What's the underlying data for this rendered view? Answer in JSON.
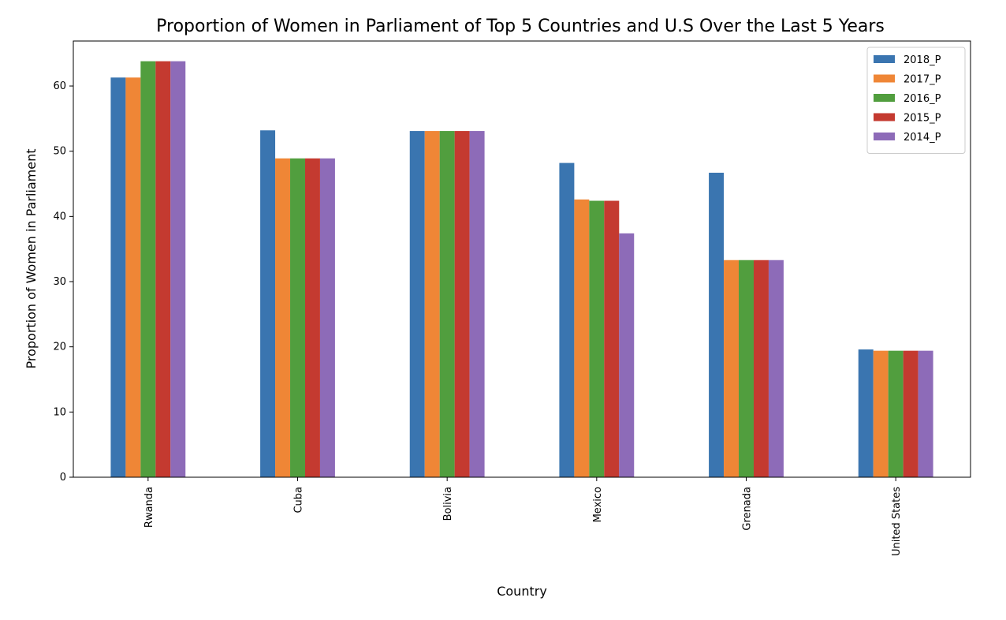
{
  "chart_data": {
    "type": "bar",
    "title": "Proportion of Women in Parliament of Top 5 Countries and U.S Over the Last 5 Years",
    "xlabel": "Country",
    "ylabel": "Proportion of Women in Parliament",
    "categories": [
      "Rwanda",
      "Cuba",
      "Bolivia",
      "Mexico",
      "Grenada",
      "United States"
    ],
    "series": [
      {
        "name": "2018_P",
        "color": "#3a75b0",
        "values": [
          61.3,
          53.2,
          53.1,
          48.2,
          46.7,
          19.6
        ]
      },
      {
        "name": "2017_P",
        "color": "#ef8636",
        "values": [
          61.3,
          48.9,
          53.1,
          42.6,
          33.3,
          19.4
        ]
      },
      {
        "name": "2016_P",
        "color": "#519e3e",
        "values": [
          63.8,
          48.9,
          53.1,
          42.4,
          33.3,
          19.4
        ]
      },
      {
        "name": "2015_P",
        "color": "#c43a30",
        "values": [
          63.8,
          48.9,
          53.1,
          42.4,
          33.3,
          19.4
        ]
      },
      {
        "name": "2014_P",
        "color": "#8d6bb8",
        "values": [
          63.8,
          48.9,
          53.1,
          37.4,
          33.3,
          19.4
        ]
      }
    ],
    "ylim": [
      0,
      66.9
    ],
    "yticks": [
      0,
      10,
      20,
      30,
      40,
      50,
      60
    ],
    "grid": false,
    "legend_position": "top-right"
  }
}
